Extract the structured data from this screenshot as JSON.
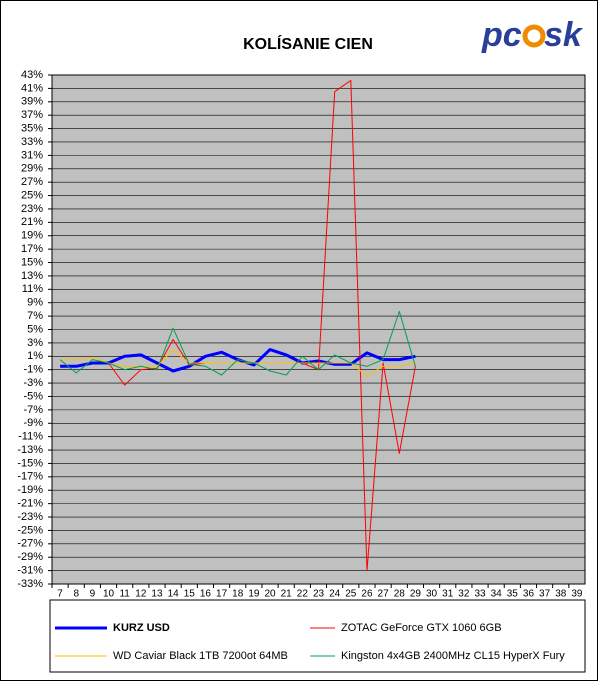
{
  "logo": {
    "left": "pc",
    "right": "sk"
  },
  "chart_data": {
    "type": "line",
    "title": "KOLÍSANIE CIEN",
    "categories": [
      "7",
      "8",
      "9",
      "10",
      "11",
      "12",
      "13",
      "14",
      "15",
      "16",
      "17",
      "18",
      "19",
      "20",
      "21",
      "22",
      "23",
      "24",
      "25",
      "26",
      "27",
      "28",
      "29",
      "30",
      "31",
      "32",
      "33",
      "34",
      "35",
      "36",
      "37",
      "38",
      "39"
    ],
    "ylim": [
      -33,
      43
    ],
    "yticks": [
      {
        "value": 43,
        "label": "43%"
      },
      {
        "value": 41,
        "label": "41%"
      },
      {
        "value": 39,
        "label": "39%"
      },
      {
        "value": 37,
        "label": "37%"
      },
      {
        "value": 35,
        "label": "35%"
      },
      {
        "value": 33,
        "label": "33%"
      },
      {
        "value": 31,
        "label": "31%"
      },
      {
        "value": 29,
        "label": "29%"
      },
      {
        "value": 27,
        "label": "27%"
      },
      {
        "value": 25,
        "label": "25%"
      },
      {
        "value": 23,
        "label": "23%"
      },
      {
        "value": 21,
        "label": "21%"
      },
      {
        "value": 19,
        "label": "19%"
      },
      {
        "value": 17,
        "label": "17%"
      },
      {
        "value": 15,
        "label": "15%"
      },
      {
        "value": 13,
        "label": "13%"
      },
      {
        "value": 11,
        "label": "11%"
      },
      {
        "value": 9,
        "label": "9%"
      },
      {
        "value": 7,
        "label": "7%"
      },
      {
        "value": 5,
        "label": "5%"
      },
      {
        "value": 3,
        "label": "3%"
      },
      {
        "value": 1,
        "label": "1%"
      },
      {
        "value": -1,
        "label": "-1%"
      },
      {
        "value": -3,
        "label": "-3%"
      },
      {
        "value": -5,
        "label": "-5%"
      },
      {
        "value": -7,
        "label": "-7%"
      },
      {
        "value": -9,
        "label": "-9%"
      },
      {
        "value": -11,
        "label": "-11%"
      },
      {
        "value": -13,
        "label": "-13%"
      },
      {
        "value": -15,
        "label": "-15%"
      },
      {
        "value": -17,
        "label": "-17%"
      },
      {
        "value": -19,
        "label": "-19%"
      },
      {
        "value": -21,
        "label": "-21%"
      },
      {
        "value": -23,
        "label": "-23%"
      },
      {
        "value": -25,
        "label": "-25%"
      },
      {
        "value": -27,
        "label": "-27%"
      },
      {
        "value": -29,
        "label": "-29%"
      },
      {
        "value": -31,
        "label": "-31%"
      },
      {
        "value": -33,
        "label": "-33%"
      }
    ],
    "grid": true,
    "series": [
      {
        "name": "KURZ USD",
        "color": "#0000ff",
        "width": 3,
        "values": [
          -0.5,
          -0.5,
          0,
          0,
          1,
          1.2,
          0,
          -1.2,
          -0.5,
          1,
          1.6,
          0.5,
          -0.3,
          2,
          1.2,
          0,
          0.3,
          -0.2,
          -0.2,
          1.5,
          0.5,
          0.5,
          1,
          null,
          null,
          null,
          null,
          null,
          null,
          null,
          null,
          null,
          null
        ]
      },
      {
        "name": "ZOTAC GeForce GTX 1060 6GB",
        "color": "#ff0000",
        "width": 1,
        "values": [
          null,
          null,
          null,
          0,
          -3.3,
          -1,
          -0.8,
          3.5,
          -0.3,
          0,
          0,
          0,
          0,
          0,
          0,
          0,
          -1,
          40.5,
          42.2,
          -31,
          0,
          -13.5,
          -0.5,
          null,
          null,
          null,
          null,
          null,
          null,
          null,
          null,
          null,
          null
        ]
      },
      {
        "name": "WD Caviar Black 1TB 7200ot 64MB",
        "color": "#ffc000",
        "width": 1,
        "values": [
          0.5,
          0.5,
          0.8,
          0,
          -0.5,
          -0.5,
          -0.5,
          2,
          0,
          0,
          0,
          0,
          0,
          0,
          0,
          0,
          0,
          0,
          0,
          -2,
          -0.5,
          -0.5,
          0,
          null,
          null,
          null,
          null,
          null,
          null,
          null,
          null,
          null,
          null
        ]
      },
      {
        "name": "Kingston 4x4GB 2400MHz CL15 HyperX Fury",
        "color": "#00a050",
        "width": 1,
        "values": [
          0.5,
          -1.5,
          0.5,
          0,
          -1,
          -0.5,
          -1,
          5.2,
          -0.2,
          -0.5,
          -1.8,
          0.5,
          0,
          -1.2,
          -1.8,
          1,
          -1,
          1.2,
          0,
          -0.5,
          0.5,
          7.7,
          -0.5,
          null,
          null,
          null,
          null,
          null,
          null,
          null,
          null,
          null,
          null
        ]
      }
    ]
  }
}
